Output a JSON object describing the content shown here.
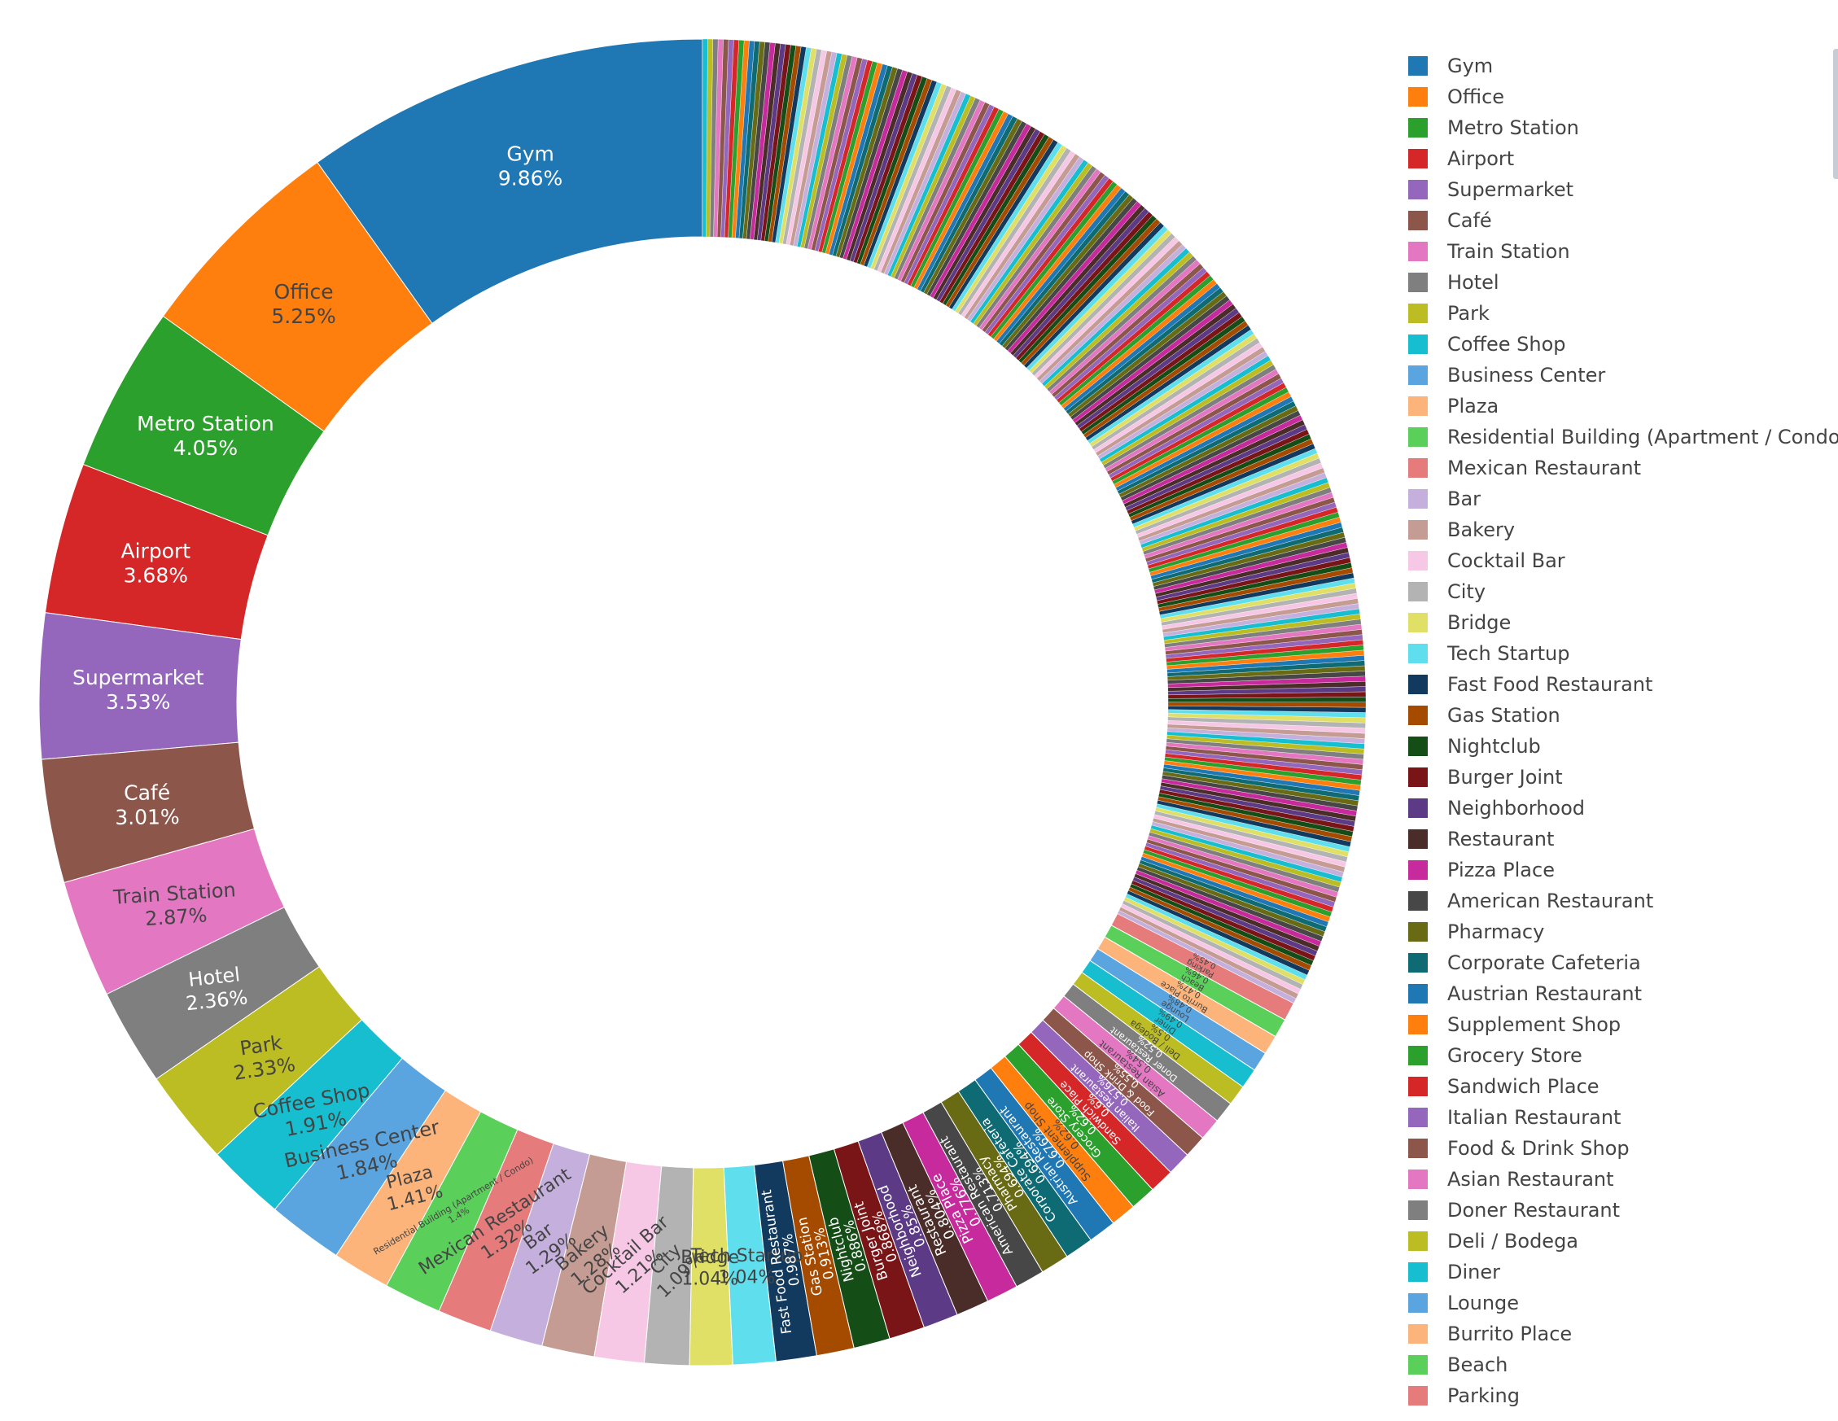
{
  "chart_data": {
    "type": "pie",
    "hole": true,
    "legend_position": "right",
    "title": "",
    "slices": [
      {
        "label": "Gym",
        "percent": 9.86,
        "text": "9.86%",
        "color": "#1f77b4"
      },
      {
        "label": "Office",
        "percent": 5.25,
        "text": "5.25%",
        "color": "#ff7f0e"
      },
      {
        "label": "Metro Station",
        "percent": 4.05,
        "text": "4.05%",
        "color": "#2ca02c"
      },
      {
        "label": "Airport",
        "percent": 3.68,
        "text": "3.68%",
        "color": "#d62728"
      },
      {
        "label": "Supermarket",
        "percent": 3.53,
        "text": "3.53%",
        "color": "#9467bd"
      },
      {
        "label": "Café",
        "percent": 3.01,
        "text": "3.01%",
        "color": "#8c564b"
      },
      {
        "label": "Train Station",
        "percent": 2.87,
        "text": "2.87%",
        "color": "#e377c2"
      },
      {
        "label": "Hotel",
        "percent": 2.36,
        "text": "2.36%",
        "color": "#7f7f7f"
      },
      {
        "label": "Park",
        "percent": 2.33,
        "text": "2.33%",
        "color": "#bcbd22"
      },
      {
        "label": "Coffee Shop",
        "percent": 1.91,
        "text": "1.91%",
        "color": "#17becf"
      },
      {
        "label": "Business Center",
        "percent": 1.84,
        "text": "1.84%",
        "color": "#5aa5e0"
      },
      {
        "label": "Plaza",
        "percent": 1.41,
        "text": "1.41%",
        "color": "#fdb47a"
      },
      {
        "label": "Residential Building (Apartment / Condo)",
        "percent": 1.4,
        "text": "1.4%",
        "color": "#5ad05a"
      },
      {
        "label": "Mexican Restaurant",
        "percent": 1.32,
        "text": "1.32%",
        "color": "#e57b7b"
      },
      {
        "label": "Bar",
        "percent": 1.29,
        "text": "1.29%",
        "color": "#c5b0dd"
      },
      {
        "label": "Bakery",
        "percent": 1.28,
        "text": "1.28%",
        "color": "#c49c94"
      },
      {
        "label": "Cocktail Bar",
        "percent": 1.21,
        "text": "1.21%",
        "color": "#f7c8e6"
      },
      {
        "label": "City",
        "percent": 1.09,
        "text": "1.09%",
        "color": "#b3b3b3"
      },
      {
        "label": "Bridge",
        "percent": 1.04,
        "text": "1.04%",
        "color": "#e0e066"
      },
      {
        "label": "Tech Startup",
        "percent": 1.04,
        "text": "1.04%",
        "color": "#5fdfee"
      },
      {
        "label": "Fast Food Restaurant",
        "percent": 0.987,
        "text": "0.987%",
        "color": "#123a5e"
      },
      {
        "label": "Gas Station",
        "percent": 0.913,
        "text": "0.913%",
        "color": "#a44b00"
      },
      {
        "label": "Nightclub",
        "percent": 0.886,
        "text": "0.886%",
        "color": "#154d16"
      },
      {
        "label": "Burger Joint",
        "percent": 0.868,
        "text": "0.868%",
        "color": "#7a1517"
      },
      {
        "label": "Neighborhood",
        "percent": 0.85,
        "text": "0.85%",
        "color": "#5c3a86"
      },
      {
        "label": "Restaurant",
        "percent": 0.804,
        "text": "0.804%",
        "color": "#4a2c28"
      },
      {
        "label": "Pizza Place",
        "percent": 0.776,
        "text": "0.776%",
        "color": "#c72a9c"
      },
      {
        "label": "American Restaurant",
        "percent": 0.713,
        "text": "0.713%",
        "color": "#474747"
      },
      {
        "label": "Pharmacy",
        "percent": 0.694,
        "text": "0.694%",
        "color": "#686a14"
      },
      {
        "label": "Corporate Cafeteria",
        "percent": 0.694,
        "text": "0.694%",
        "color": "#0f6b73"
      },
      {
        "label": "Austrian Restaurant",
        "percent": 0.676,
        "text": "0.676%",
        "color": "#1f77b4"
      },
      {
        "label": "Supplement Shop",
        "percent": 0.62,
        "text": "0.62%",
        "color": "#ff7f0e"
      },
      {
        "label": "Grocery Store",
        "percent": 0.62,
        "text": "0.62%",
        "color": "#2ca02c"
      },
      {
        "label": "Sandwich Place",
        "percent": 0.6,
        "text": "0.6%",
        "color": "#d62728"
      },
      {
        "label": "Italian Restaurant",
        "percent": 0.576,
        "text": "0.576%",
        "color": "#9467bd"
      },
      {
        "label": "Food & Drink Shop",
        "percent": 0.55,
        "text": "0.55%",
        "color": "#8c564b"
      },
      {
        "label": "Asian Restaurant",
        "percent": 0.54,
        "text": "0.54%",
        "color": "#e377c2"
      },
      {
        "label": "Doner Restaurant",
        "percent": 0.52,
        "text": "0.52%",
        "color": "#7f7f7f"
      },
      {
        "label": "Deli / Bodega",
        "percent": 0.5,
        "text": "0.5%",
        "color": "#bcbd22"
      },
      {
        "label": "Diner",
        "percent": 0.49,
        "text": "0.49%",
        "color": "#17becf"
      },
      {
        "label": "Lounge",
        "percent": 0.48,
        "text": "0.48%",
        "color": "#5aa5e0"
      },
      {
        "label": "Burrito Place",
        "percent": 0.47,
        "text": "0.47%",
        "color": "#fdb47a"
      },
      {
        "label": "Beach",
        "percent": 0.46,
        "text": "0.46%",
        "color": "#5ad05a"
      },
      {
        "label": "Parking",
        "percent": 0.45,
        "text": "0.45%",
        "color": "#e57b7b"
      }
    ],
    "other_small_slices": {
      "count": 260,
      "palette": [
        "#c5b0dd",
        "#c49c94",
        "#f7c8e6",
        "#b3b3b3",
        "#e0e066",
        "#5fdfee",
        "#123a5e",
        "#a44b00",
        "#154d16",
        "#7a1517",
        "#5c3a86",
        "#4a2c28",
        "#c72a9c",
        "#474747",
        "#686a14",
        "#0f6b73",
        "#1f77b4",
        "#ff7f0e",
        "#2ca02c",
        "#d62728",
        "#9467bd",
        "#8c564b",
        "#e377c2",
        "#7f7f7f",
        "#bcbd22",
        "#17becf"
      ]
    }
  }
}
